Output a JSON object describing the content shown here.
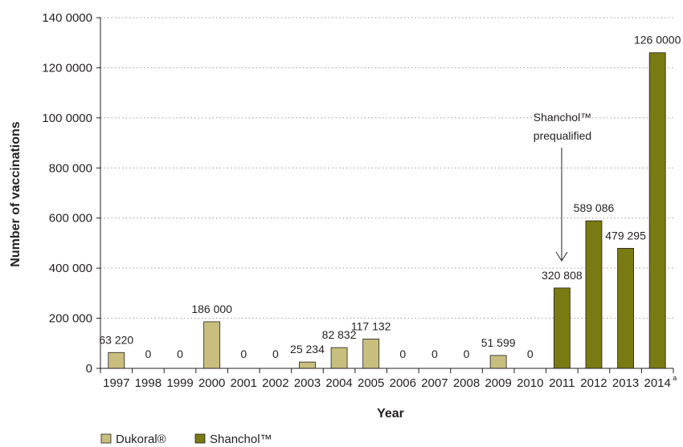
{
  "chart_data": {
    "type": "bar",
    "title": "",
    "xlabel": "Year",
    "ylabel": "Number of vaccinations",
    "ylim": [
      0,
      1400000
    ],
    "y_ticks": [
      {
        "value": 0,
        "label": "0"
      },
      {
        "value": 200000,
        "label": "200 000"
      },
      {
        "value": 400000,
        "label": "400 000"
      },
      {
        "value": 600000,
        "label": "600 000"
      },
      {
        "value": 800000,
        "label": "800 000"
      },
      {
        "value": 1000000,
        "label": "100 0000"
      },
      {
        "value": 1200000,
        "label": "120 0000"
      },
      {
        "value": 1400000,
        "label": "140 0000"
      }
    ],
    "grid": "horizontal dotted",
    "legend_placement": "bottom-left",
    "bars": [
      {
        "year": "1997",
        "value": 63220,
        "label": "63 220",
        "series": "dukoral"
      },
      {
        "year": "1998",
        "value": 0,
        "label": "0",
        "series": "dukoral"
      },
      {
        "year": "1999",
        "value": 0,
        "label": "0",
        "series": "dukoral"
      },
      {
        "year": "2000",
        "value": 186000,
        "label": "186 000",
        "series": "dukoral"
      },
      {
        "year": "2001",
        "value": 0,
        "label": "0",
        "series": "dukoral"
      },
      {
        "year": "2002",
        "value": 0,
        "label": "0",
        "series": "dukoral"
      },
      {
        "year": "2003",
        "value": 25234,
        "label": "25 234",
        "series": "dukoral"
      },
      {
        "year": "2004",
        "value": 82832,
        "label": "82 832",
        "series": "dukoral"
      },
      {
        "year": "2005",
        "value": 117132,
        "label": "117 132",
        "series": "dukoral"
      },
      {
        "year": "2006",
        "value": 0,
        "label": "0",
        "series": "dukoral"
      },
      {
        "year": "2007",
        "value": 0,
        "label": "0",
        "series": "dukoral"
      },
      {
        "year": "2008",
        "value": 0,
        "label": "0",
        "series": "dukoral"
      },
      {
        "year": "2009",
        "value": 51599,
        "label": "51 599",
        "series": "dukoral"
      },
      {
        "year": "2010",
        "value": 0,
        "label": "0",
        "series": "dukoral"
      },
      {
        "year": "2011",
        "value": 320808,
        "label": "320 808",
        "series": "shanchol"
      },
      {
        "year": "2012",
        "value": 589086,
        "label": "589 086",
        "series": "shanchol"
      },
      {
        "year": "2013",
        "value": 479295,
        "label": "479 295",
        "series": "shanchol"
      },
      {
        "year": "2014",
        "value": 1260000,
        "label": "126 0000",
        "series": "shanchol",
        "superscript": "a"
      }
    ],
    "series": [
      {
        "key": "dukoral",
        "name": "Dukoral®",
        "color": "#c8bf7f"
      },
      {
        "key": "shanchol",
        "name": "Shanchol™",
        "color": "#7a7a12"
      }
    ],
    "annotation": {
      "lines": [
        "Shanchol™",
        "prequalified"
      ],
      "points_to_year": "2011"
    }
  }
}
